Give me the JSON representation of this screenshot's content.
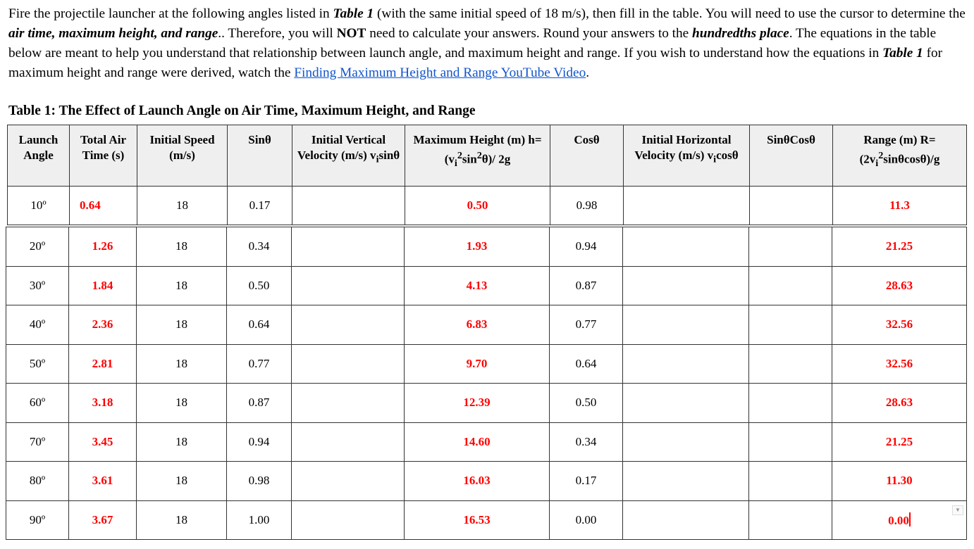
{
  "intro": [
    {
      "t": "Fire the projectile launcher at the following angles listed in "
    },
    {
      "t": "Table 1",
      "s": "bi"
    },
    {
      "t": " (with the same initial speed of 18 m/s), then fill in the table.  You will need to use the cursor to determine the "
    },
    {
      "t": "air time, maximum height, and range",
      "s": "bi"
    },
    {
      "t": ".. Therefore, you will "
    },
    {
      "t": "NOT",
      "s": "b"
    },
    {
      "t": " need to calculate your answers. Round your answers to the "
    },
    {
      "t": "hundredths place",
      "s": "bi"
    },
    {
      "t": ". The equations in the table below are meant to help you understand that relationship between launch angle, and maximum height and range. If you wish to understand how the equations in "
    },
    {
      "t": "Table 1",
      "s": "bi"
    },
    {
      "t": " for maximum height and range were derived, watch the "
    },
    {
      "t": "Finding Maximum Height and Range YouTube Video",
      "s": "link"
    },
    {
      "t": "."
    }
  ],
  "table_title": "Table 1: The Effect of Launch Angle on Air Time, Maximum Height, and Range",
  "headers": [
    "Launch Angle",
    "Total Air Time (s)",
    "Initial Speed (m/s)",
    "Sinθ",
    "Initial Vertical Velocity (m/s) v<sub>i</sub>sinθ",
    "Maximum Height (m) h= (v<sub>i</sub><sup>2</sup>sin<sup>2</sup>θ)/ 2g",
    "Cosθ",
    "Initial Horizontal Velocity (m/s) v<sub>i</sub>cosθ",
    "SinθCosθ",
    "Range (m) R= (2v<sub>i</sub><sup>2</sup>sinθcosθ)/g"
  ],
  "rows": [
    [
      "10º",
      "0.64",
      "18",
      "0.17",
      "",
      "0.50",
      "0.98",
      "",
      "",
      "11.3"
    ],
    [
      "20º",
      "1.26",
      "18",
      "0.34",
      "",
      "1.93",
      "0.94",
      "",
      "",
      "21.25"
    ],
    [
      "30º",
      "1.84",
      "18",
      "0.50",
      "",
      "4.13",
      "0.87",
      "",
      "",
      "28.63"
    ],
    [
      "40º",
      "2.36",
      "18",
      "0.64",
      "",
      "6.83",
      "0.77",
      "",
      "",
      "32.56"
    ],
    [
      "50º",
      "2.81",
      "18",
      "0.77",
      "",
      "9.70",
      "0.64",
      "",
      "",
      "32.56"
    ],
    [
      "60º",
      "3.18",
      "18",
      "0.87",
      "",
      "12.39",
      "0.50",
      "",
      "",
      "28.63"
    ],
    [
      "70º",
      "3.45",
      "18",
      "0.94",
      "",
      "14.60",
      "0.34",
      "",
      "",
      "21.25"
    ],
    [
      "80º",
      "3.61",
      "18",
      "0.98",
      "",
      "16.03",
      "0.17",
      "",
      "",
      "11.30"
    ],
    [
      "90º",
      "3.67",
      "18",
      "1.00",
      "",
      "16.53",
      "0.00",
      "",
      "",
      "0.00"
    ]
  ],
  "colors": {
    "answer": "#ff0000",
    "link": "#1155cc",
    "header_bg": "#efefef"
  }
}
